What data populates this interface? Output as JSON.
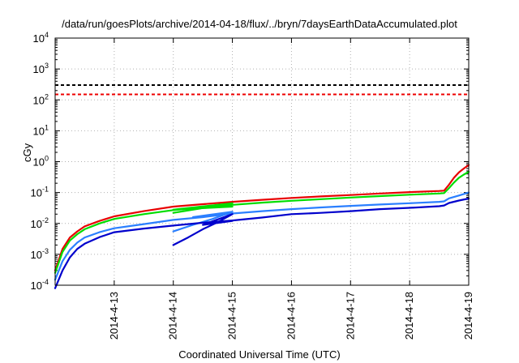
{
  "chart_data": {
    "type": "line",
    "title": "/data/run/goesPlots/archive/2014-04-18/flux/../bryn/7daysEarthDataAccumulated.plot",
    "xlabel": "Coordinated Universal Time (UTC)",
    "ylabel": "cGy",
    "x_range": [
      "2014-04-12 00:00",
      "2014-04-19 00:00"
    ],
    "ylim": [
      0.0001,
      10000
    ],
    "y_scale": "log",
    "grid": true,
    "legend": "none",
    "x_ticks": [
      "2014-4-13",
      "2014-4-14",
      "2014-4-15",
      "2014-4-16",
      "2014-4-17",
      "2014-4-18",
      "2014-4-19"
    ],
    "y_ticks": [
      {
        "value": 0.0001,
        "base": "10",
        "exp": "-4"
      },
      {
        "value": 0.001,
        "base": "10",
        "exp": "-3"
      },
      {
        "value": 0.01,
        "base": "10",
        "exp": "-2"
      },
      {
        "value": 0.1,
        "base": "10",
        "exp": "-1"
      },
      {
        "value": 1,
        "base": "10",
        "exp": "0"
      },
      {
        "value": 10,
        "base": "10",
        "exp": "1"
      },
      {
        "value": 100,
        "base": "10",
        "exp": "2"
      },
      {
        "value": 1000,
        "base": "10",
        "exp": "3"
      },
      {
        "value": 10000,
        "base": "10",
        "exp": "4"
      }
    ],
    "thresholds": [
      {
        "value": 300,
        "color": "#000000",
        "style": "dashed"
      },
      {
        "value": 150,
        "color": "#ee0000",
        "style": "dashed"
      }
    ],
    "series": [
      {
        "color": "#e80000",
        "points": [
          [
            "2014-04-12 00:00",
            0.0003
          ],
          [
            "2014-04-12 03:00",
            0.0015
          ],
          [
            "2014-04-12 06:00",
            0.0035
          ],
          [
            "2014-04-12 09:00",
            0.0055
          ],
          [
            "2014-04-12 12:00",
            0.008
          ],
          [
            "2014-04-12 18:00",
            0.012
          ],
          [
            "2014-04-13 00:00",
            0.017
          ],
          [
            "2014-04-13 12:00",
            0.025
          ],
          [
            "2014-04-14 00:00",
            0.035
          ],
          [
            "2014-04-14 12:00",
            0.042
          ],
          [
            "2014-04-15 00:00",
            0.05
          ],
          [
            "2014-04-15 12:00",
            0.058
          ],
          [
            "2014-04-16 00:00",
            0.067
          ],
          [
            "2014-04-16 12:00",
            0.075
          ],
          [
            "2014-04-17 00:00",
            0.083
          ],
          [
            "2014-04-17 12:00",
            0.093
          ],
          [
            "2014-04-18 00:00",
            0.103
          ],
          [
            "2014-04-18 12:00",
            0.112
          ],
          [
            "2014-04-18 14:00",
            0.115
          ],
          [
            "2014-04-18 16:00",
            0.18
          ],
          [
            "2014-04-18 18:00",
            0.3
          ],
          [
            "2014-04-18 20:00",
            0.45
          ],
          [
            "2014-04-18 22:00",
            0.6
          ],
          [
            "2014-04-19 00:00",
            0.78
          ]
        ]
      },
      {
        "color": "#00dd00",
        "points": [
          [
            "2014-04-12 00:00",
            0.00025
          ],
          [
            "2014-04-12 03:00",
            0.0012
          ],
          [
            "2014-04-12 06:00",
            0.0028
          ],
          [
            "2014-04-12 09:00",
            0.0045
          ],
          [
            "2014-04-12 12:00",
            0.0065
          ],
          [
            "2014-04-12 18:00",
            0.01
          ],
          [
            "2014-04-13 00:00",
            0.014
          ],
          [
            "2014-04-13 12:00",
            0.02
          ],
          [
            "2014-04-14 00:00",
            0.027
          ],
          [
            "2014-04-14 12:00",
            0.033
          ],
          [
            "2014-04-15 00:00",
            0.04
          ],
          [
            "2014-04-15 12:00",
            0.047
          ],
          [
            "2014-04-16 00:00",
            0.054
          ],
          [
            "2014-04-16 12:00",
            0.061
          ],
          [
            "2014-04-17 00:00",
            0.069
          ],
          [
            "2014-04-17 12:00",
            0.077
          ],
          [
            "2014-04-18 00:00",
            0.085
          ],
          [
            "2014-04-18 12:00",
            0.093
          ],
          [
            "2014-04-18 14:00",
            0.096
          ],
          [
            "2014-04-18 16:00",
            0.14
          ],
          [
            "2014-04-18 18:00",
            0.21
          ],
          [
            "2014-04-18 20:00",
            0.3
          ],
          [
            "2014-04-18 22:00",
            0.38
          ],
          [
            "2014-04-19 00:00",
            0.47
          ]
        ]
      },
      {
        "color": "#00dd00",
        "points": [
          [
            "2014-04-14 00:00",
            0.022
          ],
          [
            "2014-04-15 00:00",
            0.045
          ],
          [
            "2014-04-14 00:00",
            0.028
          ],
          [
            "2014-04-15 00:00",
            0.035
          ]
        ]
      },
      {
        "color": "#2a7fff",
        "points": [
          [
            "2014-04-12 00:00",
            0.00015
          ],
          [
            "2014-04-12 03:00",
            0.0006
          ],
          [
            "2014-04-12 06:00",
            0.0014
          ],
          [
            "2014-04-12 09:00",
            0.0024
          ],
          [
            "2014-04-12 12:00",
            0.0035
          ],
          [
            "2014-04-12 18:00",
            0.0052
          ],
          [
            "2014-04-13 00:00",
            0.007
          ],
          [
            "2014-04-13 12:00",
            0.0095
          ],
          [
            "2014-04-14 00:00",
            0.013
          ],
          [
            "2014-04-14 12:00",
            0.016
          ],
          [
            "2014-04-15 00:00",
            0.021
          ],
          [
            "2014-04-15 12:00",
            0.025
          ],
          [
            "2014-04-16 00:00",
            0.029
          ],
          [
            "2014-04-16 12:00",
            0.033
          ],
          [
            "2014-04-17 00:00",
            0.037
          ],
          [
            "2014-04-17 12:00",
            0.041
          ],
          [
            "2014-04-18 00:00",
            0.045
          ],
          [
            "2014-04-18 12:00",
            0.05
          ],
          [
            "2014-04-18 14:00",
            0.052
          ],
          [
            "2014-04-18 16:00",
            0.065
          ],
          [
            "2014-04-18 20:00",
            0.08
          ],
          [
            "2014-04-19 00:00",
            0.1
          ]
        ]
      },
      {
        "color": "#2a7fff",
        "points": [
          [
            "2014-04-14 00:00",
            0.0055
          ],
          [
            "2014-04-14 08:00",
            0.009
          ],
          [
            "2014-04-14 16:00",
            0.014
          ],
          [
            "2014-04-15 00:00",
            0.024
          ],
          [
            "2014-04-14 08:00",
            0.016
          ]
        ]
      },
      {
        "color": "#0000cc",
        "points": [
          [
            "2014-04-12 00:00",
            8e-05
          ],
          [
            "2014-04-12 03:00",
            0.0003
          ],
          [
            "2014-04-12 06:00",
            0.0008
          ],
          [
            "2014-04-12 09:00",
            0.0015
          ],
          [
            "2014-04-12 12:00",
            0.0022
          ],
          [
            "2014-04-12 18:00",
            0.0036
          ],
          [
            "2014-04-13 00:00",
            0.0052
          ],
          [
            "2014-04-13 12:00",
            0.0068
          ],
          [
            "2014-04-14 00:00",
            0.0085
          ],
          [
            "2014-04-14 12:00",
            0.0105
          ],
          [
            "2014-04-15 00:00",
            0.0125
          ],
          [
            "2014-04-15 12:00",
            0.0155
          ],
          [
            "2014-04-16 00:00",
            0.02
          ],
          [
            "2014-04-16 12:00",
            0.022
          ],
          [
            "2014-04-17 00:00",
            0.025
          ],
          [
            "2014-04-17 12:00",
            0.029
          ],
          [
            "2014-04-18 00:00",
            0.032
          ],
          [
            "2014-04-18 12:00",
            0.036
          ],
          [
            "2014-04-18 14:00",
            0.038
          ],
          [
            "2014-04-18 16:00",
            0.046
          ],
          [
            "2014-04-18 20:00",
            0.055
          ],
          [
            "2014-04-19 00:00",
            0.064
          ]
        ]
      },
      {
        "color": "#0000cc",
        "points": [
          [
            "2014-04-14 00:00",
            0.002
          ],
          [
            "2014-04-14 06:00",
            0.0035
          ],
          [
            "2014-04-14 12:00",
            0.0065
          ],
          [
            "2014-04-14 18:00",
            0.011
          ],
          [
            "2014-04-15 00:00",
            0.02
          ],
          [
            "2014-04-14 12:00",
            0.009
          ],
          [
            "2014-04-15 00:00",
            0.012
          ]
        ]
      }
    ]
  }
}
